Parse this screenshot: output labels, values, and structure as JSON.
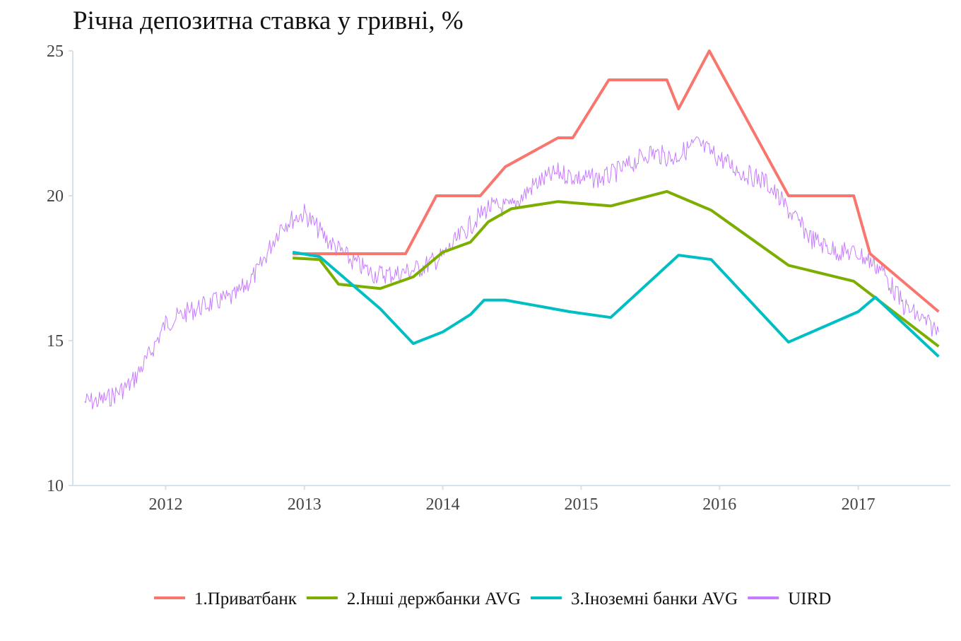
{
  "chart_data": {
    "type": "line",
    "title": "Річна депозитна ставка у гривні, %",
    "xlabel": "",
    "ylabel": "",
    "x_ticks": [
      "2012",
      "2013",
      "2014",
      "2015",
      "2016",
      "2017"
    ],
    "y_ticks": [
      10,
      15,
      20,
      25
    ],
    "xlim": [
      "2011-05-01",
      "2017-09-01"
    ],
    "ylim": [
      10,
      25
    ],
    "grid": false,
    "legend_position": "bottom",
    "series": [
      {
        "name": "1.Приватбанк",
        "color": "#F8766D",
        "width": 4,
        "x": [
          "2012-12-01",
          "2013-09-25",
          "2013-12-15",
          "2014-04-10",
          "2014-06-15",
          "2014-11-01",
          "2014-12-10",
          "2015-03-15",
          "2015-08-15",
          "2015-09-15",
          "2015-12-05",
          "2016-07-01",
          "2016-12-20",
          "2017-02-01",
          "2017-08-01"
        ],
        "values": [
          18,
          18,
          20,
          20,
          21,
          22,
          22,
          24,
          24,
          23,
          25,
          20,
          20,
          18,
          16
        ]
      },
      {
        "name": "2.Інші держбанки AVG",
        "color": "#7CAE00",
        "width": 4,
        "x": [
          "2012-12-01",
          "2013-02-10",
          "2013-04-01",
          "2013-07-20",
          "2013-10-15",
          "2014-01-01",
          "2014-03-15",
          "2014-05-01",
          "2014-07-01",
          "2014-11-01",
          "2015-03-20",
          "2015-08-15",
          "2015-12-10",
          "2016-07-01",
          "2016-12-20",
          "2017-08-01"
        ],
        "values": [
          17.85,
          17.8,
          16.95,
          16.8,
          17.2,
          18.05,
          18.4,
          19.1,
          19.55,
          19.8,
          19.65,
          20.15,
          19.5,
          17.6,
          17.05,
          14.8
        ]
      },
      {
        "name": "3.Іноземні банки AVG",
        "color": "#00BFC4",
        "width": 4,
        "x": [
          "2012-12-01",
          "2013-02-10",
          "2013-07-20",
          "2013-10-15",
          "2014-01-01",
          "2014-03-15",
          "2014-04-20",
          "2014-06-15",
          "2014-12-01",
          "2015-03-20",
          "2015-09-15",
          "2015-12-10",
          "2016-07-01",
          "2017-01-01",
          "2017-02-15",
          "2017-08-01"
        ],
        "values": [
          18.05,
          17.9,
          16.1,
          14.9,
          15.3,
          15.9,
          16.4,
          16.4,
          16.0,
          15.8,
          17.95,
          17.8,
          14.95,
          16.0,
          16.5,
          14.45
        ]
      },
      {
        "name": "UIRD",
        "color": "#C77CFF",
        "width": 1,
        "noise": 0.35,
        "x": [
          "2011-06-01",
          "2011-07-01",
          "2011-08-01",
          "2011-10-01",
          "2011-11-15",
          "2012-01-01",
          "2012-03-01",
          "2012-05-01",
          "2012-07-01",
          "2012-09-01",
          "2012-11-01",
          "2013-01-01",
          "2013-03-01",
          "2013-05-01",
          "2013-07-01",
          "2013-09-01",
          "2013-11-01",
          "2014-01-01",
          "2014-03-01",
          "2014-05-01",
          "2014-07-01",
          "2014-09-01",
          "2014-11-01",
          "2015-01-01",
          "2015-03-01",
          "2015-05-01",
          "2015-07-01",
          "2015-09-01",
          "2015-11-01",
          "2016-01-01",
          "2016-03-01",
          "2016-05-01",
          "2016-07-01",
          "2016-09-01",
          "2016-11-01",
          "2017-01-01",
          "2017-03-01",
          "2017-05-01",
          "2017-08-01"
        ],
        "values": [
          12.9,
          12.9,
          13.0,
          13.5,
          14.4,
          15.6,
          16.0,
          16.3,
          16.5,
          17.4,
          19.0,
          19.4,
          18.5,
          17.8,
          17.3,
          17.3,
          17.5,
          17.9,
          18.8,
          19.6,
          19.6,
          20.4,
          20.8,
          20.6,
          20.6,
          21.0,
          21.5,
          21.3,
          21.8,
          21.3,
          20.8,
          20.5,
          19.5,
          18.5,
          18.1,
          18.0,
          17.5,
          16.2,
          15.3
        ]
      }
    ]
  }
}
